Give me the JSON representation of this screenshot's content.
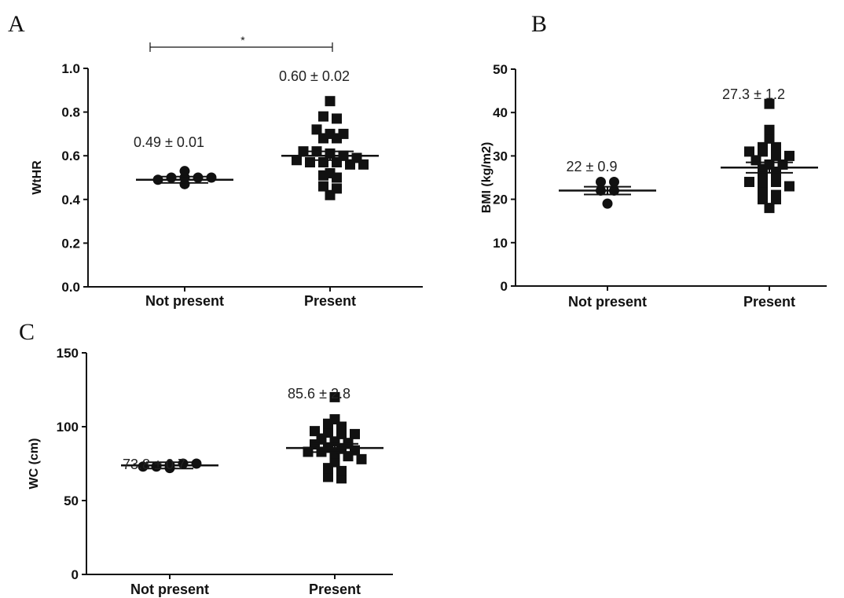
{
  "chart_data": [
    {
      "panel": "A",
      "type": "scatter",
      "ylabel": "WtHR",
      "ylim": [
        0,
        1.0
      ],
      "yticks": [
        "0.0",
        "0.2",
        "0.4",
        "0.6",
        "0.8",
        "1.0"
      ],
      "categories": [
        "Not present",
        "Present"
      ],
      "groups": [
        {
          "category": "Not present",
          "marker": "circle",
          "annotation": "0.49 ± 0.01",
          "mean": 0.49,
          "sem": 0.01,
          "points": [
            0.47,
            0.49,
            0.5,
            0.5,
            0.5,
            0.5,
            0.53
          ]
        },
        {
          "category": "Present",
          "marker": "square",
          "annotation": "0.60 ± 0.02",
          "mean": 0.6,
          "sem": 0.02,
          "points": [
            0.85,
            0.78,
            0.77,
            0.72,
            0.7,
            0.7,
            0.68,
            0.68,
            0.62,
            0.62,
            0.61,
            0.6,
            0.59,
            0.58,
            0.57,
            0.57,
            0.57,
            0.56,
            0.56,
            0.52,
            0.51,
            0.5,
            0.46,
            0.45,
            0.42
          ]
        }
      ],
      "significance": {
        "from": "Not present",
        "to": "Present",
        "label": "*"
      }
    },
    {
      "panel": "B",
      "type": "scatter",
      "ylabel": "BMI (kg/m2)",
      "ylim": [
        0,
        50
      ],
      "yticks": [
        "0",
        "10",
        "20",
        "30",
        "40",
        "50"
      ],
      "categories": [
        "Not present",
        "Present"
      ],
      "groups": [
        {
          "category": "Not present",
          "marker": "circle",
          "annotation": "22 ± 0.9",
          "mean": 22,
          "sem": 0.9,
          "points": [
            19,
            22,
            22,
            24,
            24
          ]
        },
        {
          "category": "Present",
          "marker": "square",
          "annotation": "27.3  ± 1.2",
          "mean": 27.3,
          "sem": 1.2,
          "points": [
            42,
            36,
            34,
            32,
            32,
            31,
            31,
            30,
            30,
            29,
            28,
            28,
            27,
            26,
            25,
            25,
            24,
            24,
            24,
            23,
            22,
            21,
            20,
            20,
            18
          ]
        }
      ]
    },
    {
      "panel": "C",
      "type": "scatter",
      "ylabel": "WC (cm)",
      "ylim": [
        0,
        150
      ],
      "yticks": [
        "0",
        "50",
        "100",
        "150"
      ],
      "categories": [
        "Not present",
        "Present"
      ],
      "groups": [
        {
          "category": "Not present",
          "marker": "circle",
          "annotation": "73.8 ± 0.7",
          "mean": 73.8,
          "sem": 0.7,
          "points": [
            72,
            73,
            73,
            74,
            75,
            75
          ]
        },
        {
          "category": "Present",
          "marker": "square",
          "annotation": "85.6 ± 2.8",
          "mean": 85.6,
          "sem": 2.8,
          "points": [
            120,
            105,
            102,
            100,
            97,
            96,
            95,
            95,
            92,
            90,
            89,
            88,
            86,
            85,
            84,
            83,
            83,
            82,
            80,
            78,
            76,
            72,
            70,
            66,
            65
          ]
        }
      ]
    }
  ]
}
